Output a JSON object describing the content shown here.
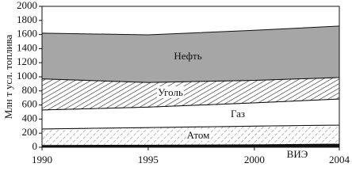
{
  "chart_data": {
    "type": "stacked_area",
    "y_label": "Млн т усл. топлива",
    "x": [
      1990,
      1995,
      2000,
      2004
    ],
    "xlim": [
      1990,
      2004
    ],
    "xticks": [
      1990,
      1995,
      2000,
      2004
    ],
    "ylim": [
      0,
      2000
    ],
    "yticks": [
      0,
      200,
      400,
      600,
      800,
      1000,
      1200,
      1400,
      1600,
      1800,
      2000
    ],
    "series": [
      {
        "name": "ВИЭ",
        "color": "#111111",
        "values": [
          25,
          30,
          35,
          45
        ]
      },
      {
        "name": "Атом",
        "color": "#ffffff",
        "hatch": "light",
        "values": [
          235,
          250,
          265,
          270
        ]
      },
      {
        "name": "Газ",
        "color": "#ffffff",
        "values": [
          270,
          290,
          330,
          370
        ]
      },
      {
        "name": "Уголь",
        "color": "#ffffff",
        "hatch": "dense",
        "values": [
          440,
          350,
          320,
          305
        ]
      },
      {
        "name": "Нефть",
        "color": "#a6a6a6",
        "values": [
          650,
          675,
          710,
          730
        ]
      }
    ]
  }
}
